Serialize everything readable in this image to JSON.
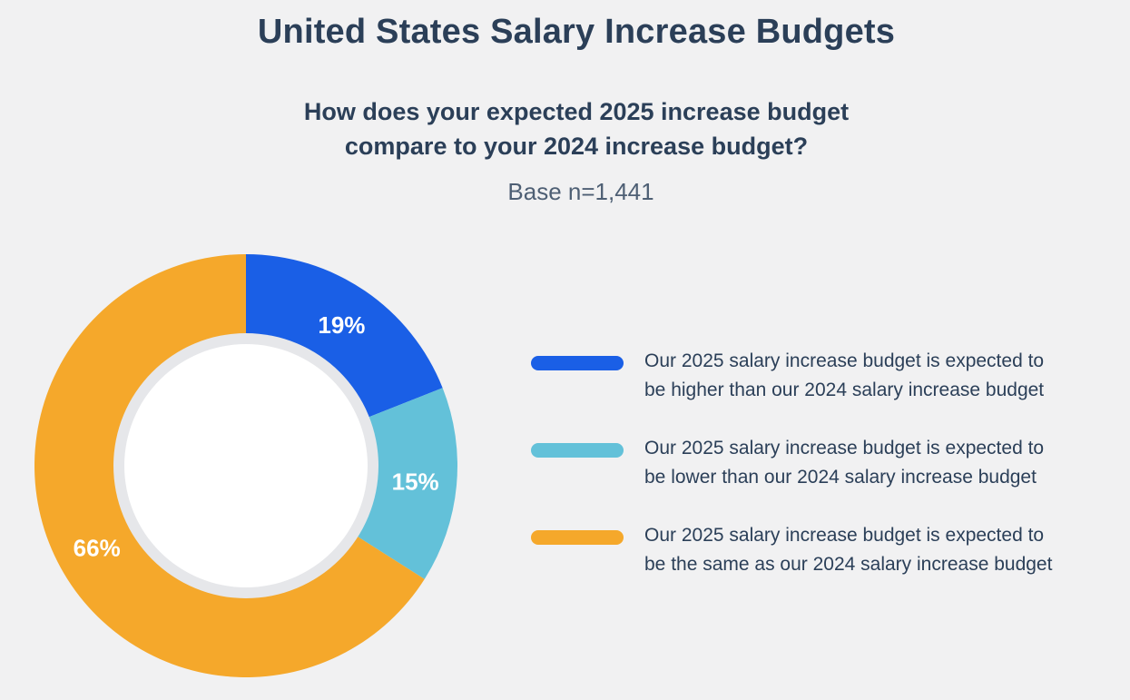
{
  "header": {
    "title": "United States Salary Increase Budgets",
    "subtitle_line1": "How does your expected 2025 increase budget",
    "subtitle_line2": "compare to your 2024 increase budget?",
    "base": "Base n=1,441"
  },
  "chart_data": {
    "type": "pie",
    "variant": "donut",
    "title": "United States Salary Increase Budgets",
    "subtitle": "How does your expected 2025 increase budget compare to your 2024 increase budget?",
    "note": "Base n=1,441",
    "legend_position": "right",
    "slices": [
      {
        "name": "Our 2025 salary increase budget is expected to be higher than our 2024 salary increase budget",
        "label_line1": "Our 2025 salary increase budget is expected to",
        "label_line2": "be higher than our 2024 salary increase budget",
        "value": 19,
        "value_label": "19%",
        "color": "#1a5fe6"
      },
      {
        "name": "Our 2025 salary increase budget is expected to be lower than our 2024 salary increase budget",
        "label_line1": "Our 2025 salary increase budget is expected to",
        "label_line2": "be lower than our 2024 salary increase budget",
        "value": 15,
        "value_label": "15%",
        "color": "#63c1d9"
      },
      {
        "name": "Our 2025 salary increase budget is expected to be the same as our 2024 salary increase budget",
        "label_line1": "Our 2025 salary increase budget is expected to",
        "label_line2": "be the same as our 2024 salary increase budget",
        "value": 66,
        "value_label": "66%",
        "color": "#f5a82b"
      }
    ]
  }
}
